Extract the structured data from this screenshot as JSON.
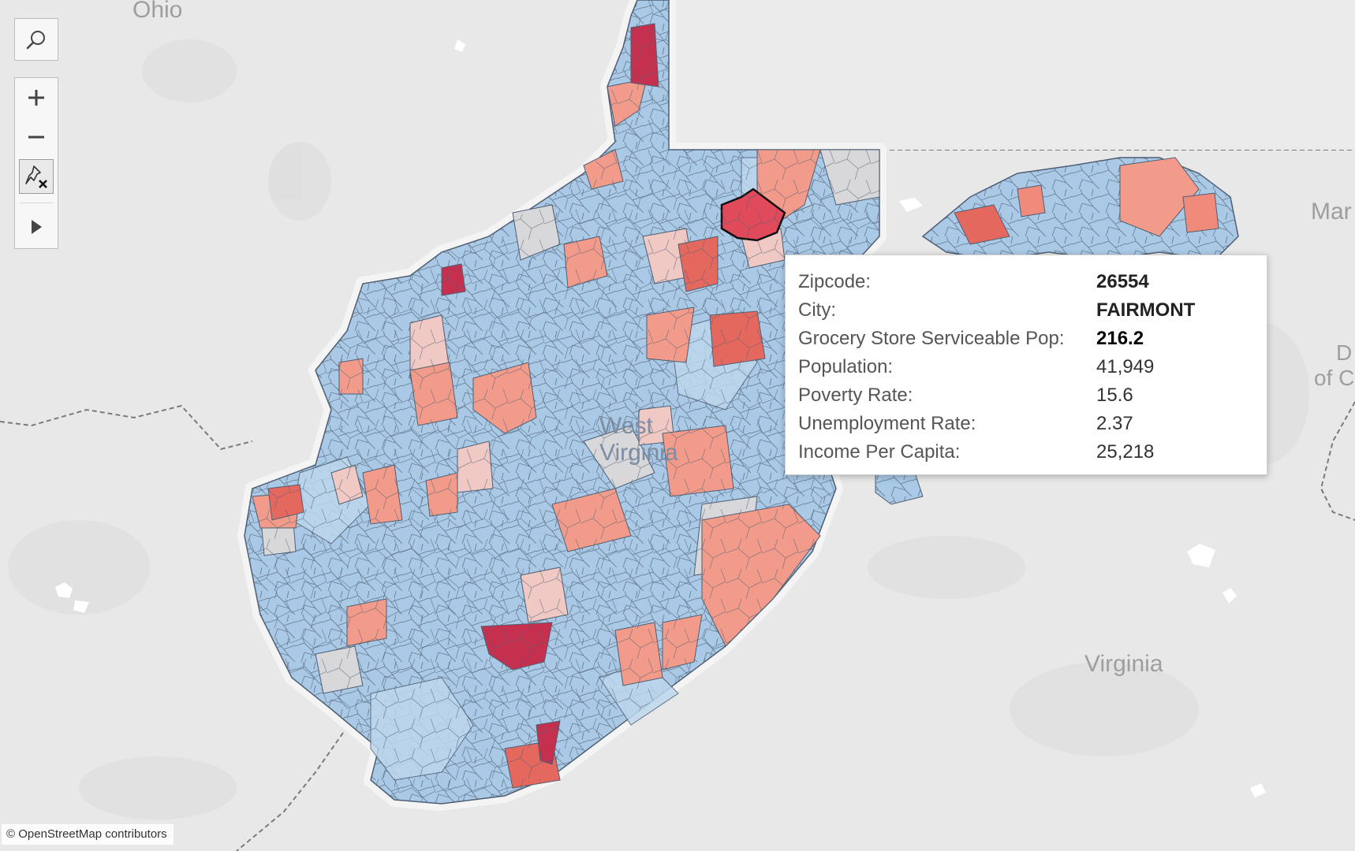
{
  "map": {
    "place_labels": {
      "ohio": "Ohio",
      "maryland_partial": "Mar",
      "west_virginia": "West Virginia",
      "virginia": "Virginia",
      "dc_partial_1": "D",
      "dc_partial_2": "of C"
    },
    "attribution": "© OpenStreetMap contributors",
    "legend_colors": {
      "low": "#a9c9e6",
      "mid": "#dcdcdc",
      "high": "#f08a7a",
      "highest": "#c4304d",
      "background": "#e8e8e8"
    }
  },
  "controls": {
    "search_icon": "search-icon",
    "zoom_in_icon": "plus-icon",
    "zoom_out_icon": "minus-icon",
    "unpin_icon": "unpin-icon",
    "expand_icon": "play-icon"
  },
  "tooltip": {
    "rows": [
      {
        "label": "Zipcode:",
        "value": "26554"
      },
      {
        "label": "City:",
        "value": "FAIRMONT"
      },
      {
        "label": "Grocery Store Serviceable Pop:",
        "value": "216.2"
      },
      {
        "label": "Population:",
        "value": "41,949"
      },
      {
        "label": "Poverty Rate:",
        "value": "15.6"
      },
      {
        "label": "Unemployment Rate:",
        "value": "2.37"
      },
      {
        "label": "Income Per Capita:",
        "value": "25,218"
      }
    ]
  }
}
